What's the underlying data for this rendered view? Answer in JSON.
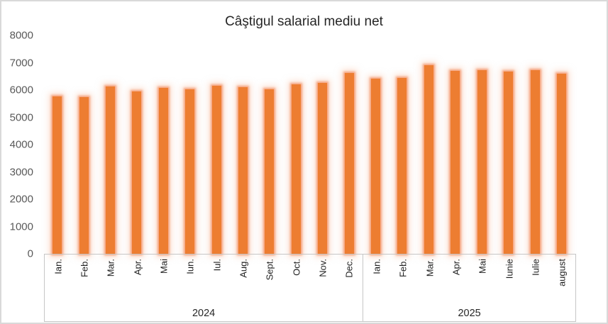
{
  "chart": {
    "title": "Câştigul salarial mediu net"
  },
  "chart_data": {
    "type": "bar",
    "title": "Câştigul salarial mediu net",
    "xlabel": "",
    "ylabel": "",
    "ylim": [
      0,
      8000
    ],
    "ytick_step": 1000,
    "yticks": [
      0,
      1000,
      2000,
      3000,
      4000,
      5000,
      6000,
      7000,
      8000
    ],
    "grid": false,
    "legend": false,
    "groups": [
      {
        "year": "2024",
        "categories": [
          "Ian.",
          "Feb.",
          "Mar.",
          "Apr.",
          "Mai",
          "Iun.",
          "Iul.",
          "Aug.",
          "Sept.",
          "Oct.",
          "Nov.",
          "Dec."
        ],
        "values": [
          5770,
          5740,
          6140,
          5960,
          6090,
          6020,
          6150,
          6110,
          6020,
          6220,
          6270,
          6620
        ]
      },
      {
        "year": "2025",
        "categories": [
          "Ian.",
          "Feb.",
          "Mar.",
          "Apr.",
          "Mai",
          "Iunie",
          "Iulie",
          "august"
        ],
        "values": [
          6410,
          6450,
          6910,
          6700,
          6740,
          6680,
          6720,
          6590
        ]
      }
    ]
  },
  "colors": {
    "bar": "#ED7D31",
    "bar_glow": "#F7C0A0",
    "axis_line": "#C6C6C6",
    "frame": "#D9D9D9",
    "tick_text": "#595959",
    "category_text": "#1F1F1F",
    "title_text": "#262626"
  }
}
